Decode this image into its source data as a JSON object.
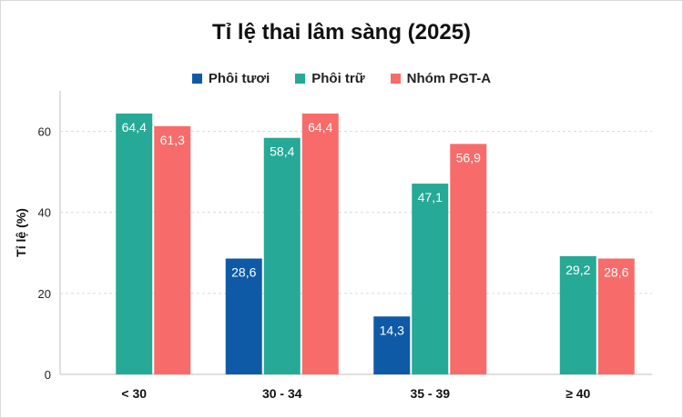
{
  "chart_data": {
    "type": "bar",
    "title": "Tỉ lệ thai lâm sàng (2025)",
    "ylabel": "Tỉ lệ (%)",
    "xlabel": "",
    "categories": [
      "< 30",
      "30 - 34",
      "35 - 39",
      "≥ 40"
    ],
    "ylim": [
      0,
      70
    ],
    "yticks": [
      0,
      20,
      40,
      60
    ],
    "grid": true,
    "legend_position": "top",
    "series": [
      {
        "name": "Phôi tươi",
        "color": "#0e5aa7",
        "values": [
          null,
          28.6,
          14.3,
          null
        ],
        "labels": [
          "",
          "28,6",
          "14,3",
          ""
        ]
      },
      {
        "name": "Phôi trữ",
        "color": "#26a996",
        "values": [
          64.4,
          58.4,
          47.1,
          29.2
        ],
        "labels": [
          "64,4",
          "58,4",
          "47,1",
          "29,2"
        ]
      },
      {
        "name": "Nhóm PGT-A",
        "color": "#f76c6a",
        "values": [
          61.3,
          64.4,
          56.9,
          28.6
        ],
        "labels": [
          "61,3",
          "64,4",
          "56,9",
          "28,6"
        ]
      }
    ]
  }
}
